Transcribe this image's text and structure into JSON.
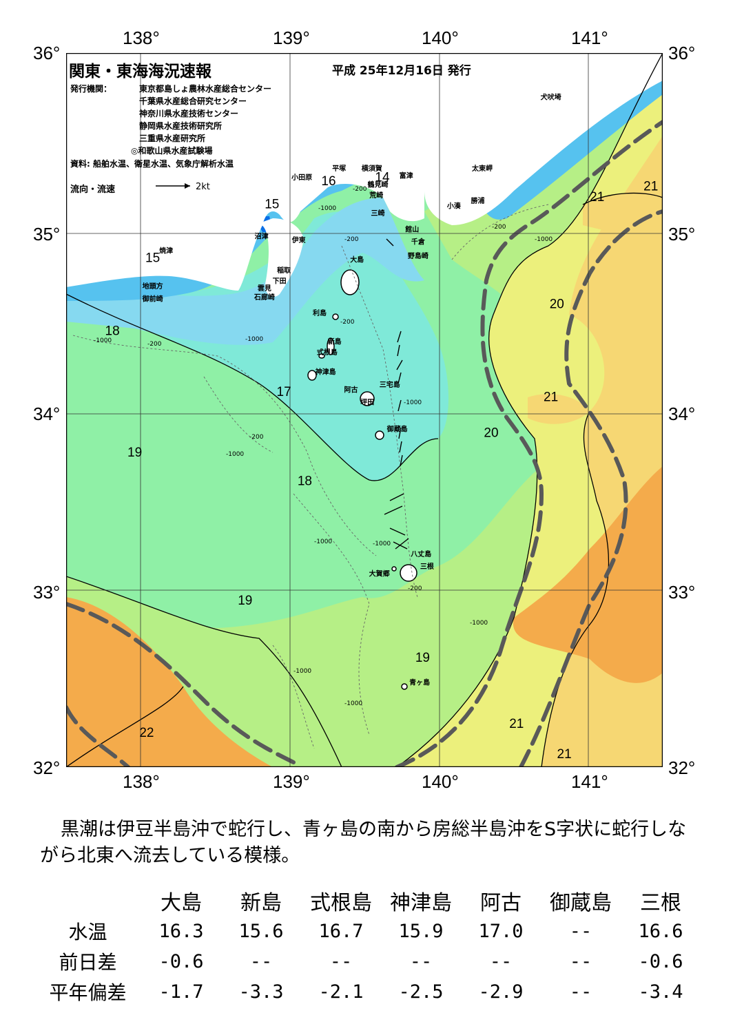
{
  "title": "関東・東海海況速報",
  "date": "平成 25年12月16日 発行",
  "issuers_label": "発行機関：",
  "issuers": [
    "東京都島しょ農林水産総合センター",
    "千葉県水産総合研究センター",
    "神奈川県水産技術センター",
    "静岡県水産技術研究所",
    "三重県水産研究所",
    "◎和歌山県水産試験場"
  ],
  "source": "資料: 船舶水温、衛星水温、気象庁解析水温",
  "flow_legend": {
    "label": "流向・流速",
    "scale": "2kt"
  },
  "axes": {
    "lon_labels": [
      "138°",
      "139°",
      "140°",
      "141°"
    ],
    "lat_labels": [
      "36°",
      "35°",
      "34°",
      "33°",
      "32°"
    ],
    "lon_range": [
      137.5,
      141.5
    ],
    "lat_range": [
      32,
      36
    ]
  },
  "colors": {
    "t14": "#0a6fe6",
    "t15": "#56c2ef",
    "t16": "#86d9f0",
    "t17": "#7fe9d8",
    "t18": "#8ff0a6",
    "t19": "#b6ef86",
    "t20": "#ecf07c",
    "t21": "#f6d773",
    "t22": "#f4ab4b",
    "land": "#ffffff",
    "kuroshio": "#595959"
  },
  "isotherm_labels": [
    {
      "text": "14",
      "lon": 139.62,
      "lat": 35.28
    },
    {
      "text": "15",
      "lon": 138.88,
      "lat": 35.13
    },
    {
      "text": "15",
      "lon": 138.08,
      "lat": 34.83
    },
    {
      "text": "16",
      "lon": 139.26,
      "lat": 35.26
    },
    {
      "text": "17",
      "lon": 138.96,
      "lat": 34.08
    },
    {
      "text": "18",
      "lon": 137.81,
      "lat": 34.42
    },
    {
      "text": "18",
      "lon": 139.1,
      "lat": 33.58
    },
    {
      "text": "19",
      "lon": 137.96,
      "lat": 33.74
    },
    {
      "text": "19",
      "lon": 138.7,
      "lat": 32.91
    },
    {
      "text": "19",
      "lon": 139.89,
      "lat": 32.59
    },
    {
      "text": "20",
      "lon": 140.79,
      "lat": 34.57
    },
    {
      "text": "20",
      "lon": 140.35,
      "lat": 33.85
    },
    {
      "text": "21",
      "lon": 141.06,
      "lat": 35.17
    },
    {
      "text": "21",
      "lon": 141.42,
      "lat": 35.23
    },
    {
      "text": "21",
      "lon": 140.75,
      "lat": 34.05
    },
    {
      "text": "21",
      "lon": 140.52,
      "lat": 32.22
    },
    {
      "text": "21",
      "lon": 140.84,
      "lat": 32.05
    },
    {
      "text": "22",
      "lon": 138.04,
      "lat": 32.17
    }
  ],
  "depth_labels": [
    "-200",
    "-1000"
  ],
  "places": [
    {
      "name": "犬吠埼",
      "lon": 140.75,
      "lat": 35.74
    },
    {
      "name": "太東岬",
      "lon": 140.29,
      "lat": 35.34
    },
    {
      "name": "勝浦",
      "lon": 140.26,
      "lat": 35.16
    },
    {
      "name": "小湊",
      "lon": 140.1,
      "lat": 35.13
    },
    {
      "name": "富津",
      "lon": 139.78,
      "lat": 35.3
    },
    {
      "name": "横須賀",
      "lon": 139.55,
      "lat": 35.34
    },
    {
      "name": "平塚",
      "lon": 139.33,
      "lat": 35.34
    },
    {
      "name": "小田原",
      "lon": 139.08,
      "lat": 35.29
    },
    {
      "name": "鶴見崎",
      "lon": 139.59,
      "lat": 35.25
    },
    {
      "name": "荒崎",
      "lon": 139.58,
      "lat": 35.19
    },
    {
      "name": "三崎",
      "lon": 139.59,
      "lat": 35.09
    },
    {
      "name": "館山",
      "lon": 139.82,
      "lat": 35.0
    },
    {
      "name": "千倉",
      "lon": 139.86,
      "lat": 34.93
    },
    {
      "name": "野島崎",
      "lon": 139.86,
      "lat": 34.85
    },
    {
      "name": "沼津",
      "lon": 138.81,
      "lat": 34.96
    },
    {
      "name": "伊東",
      "lon": 139.06,
      "lat": 34.94
    },
    {
      "name": "焼津",
      "lon": 138.17,
      "lat": 34.88
    },
    {
      "name": "稲取",
      "lon": 138.96,
      "lat": 34.77
    },
    {
      "name": "下田",
      "lon": 138.93,
      "lat": 34.71
    },
    {
      "name": "雲見",
      "lon": 138.83,
      "lat": 34.67
    },
    {
      "name": "石廊崎",
      "lon": 138.83,
      "lat": 34.62
    },
    {
      "name": "地頭方",
      "lon": 138.08,
      "lat": 34.68
    },
    {
      "name": "御前崎",
      "lon": 138.08,
      "lat": 34.61
    },
    {
      "name": "大島",
      "lon": 139.45,
      "lat": 34.83
    },
    {
      "name": "利島",
      "lon": 139.2,
      "lat": 34.53
    },
    {
      "name": "新島",
      "lon": 139.3,
      "lat": 34.37
    },
    {
      "name": "式根島",
      "lon": 139.25,
      "lat": 34.31
    },
    {
      "name": "神津島",
      "lon": 139.24,
      "lat": 34.2
    },
    {
      "name": "三宅島",
      "lon": 139.67,
      "lat": 34.13
    },
    {
      "name": "阿古",
      "lon": 139.41,
      "lat": 34.1
    },
    {
      "name": "坪田",
      "lon": 139.52,
      "lat": 34.03
    },
    {
      "name": "御蔵島",
      "lon": 139.72,
      "lat": 33.88
    },
    {
      "name": "八丈島",
      "lon": 139.88,
      "lat": 33.18
    },
    {
      "name": "三根",
      "lon": 139.92,
      "lat": 33.11
    },
    {
      "name": "大賀郷",
      "lon": 139.6,
      "lat": 33.07
    },
    {
      "name": "青ヶ島",
      "lon": 139.87,
      "lat": 32.46
    }
  ],
  "comment": "黒潮は伊豆半島沖で蛇行し、青ヶ島の南から房総半島沖をS字状に蛇行しながら北東へ流去している模様。",
  "table": {
    "columns": [
      "大島",
      "新島",
      "式根島",
      "神津島",
      "阿古",
      "御蔵島",
      "三根"
    ],
    "rows": [
      {
        "label": "水温",
        "values": [
          "16.3",
          "15.6",
          "16.7",
          "15.9",
          "17.0",
          "--",
          "16.6"
        ]
      },
      {
        "label": "前日差",
        "values": [
          "-0.6",
          "--",
          "--",
          "--",
          "--",
          "--",
          "-0.6"
        ]
      },
      {
        "label": "平年偏差",
        "values": [
          "-1.7",
          "-3.3",
          "-2.1",
          "-2.5",
          "-2.9",
          "--",
          "-3.4"
        ]
      }
    ]
  }
}
